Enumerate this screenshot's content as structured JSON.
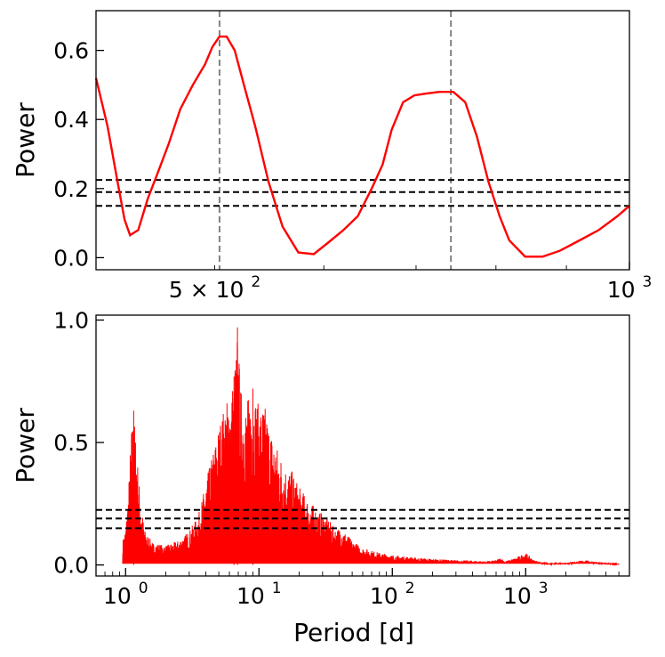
{
  "chart_data": [
    {
      "type": "line",
      "ylabel": "Power",
      "xscale": "log",
      "xlim": [
        410,
        1000
      ],
      "ylim": [
        -0.035,
        0.715
      ],
      "x_tick_labels": [
        {
          "base": "5",
          "times": "×",
          "mant": "10",
          "exp": "2",
          "value": 500
        },
        {
          "mant": "10",
          "exp": "3",
          "value": 1000
        }
      ],
      "y_ticks": [
        0.0,
        0.2,
        0.4,
        0.6
      ],
      "y_tick_labels": [
        "0.0",
        "0.2",
        "0.4",
        "0.6"
      ],
      "series": [
        {
          "color": "#ff0000",
          "x": [
            410,
            418,
            425,
            430,
            434,
            440,
            447,
            455,
            463,
            472,
            482,
            492,
            498,
            504,
            510,
            517,
            525,
            535,
            547,
            560,
            575,
            590,
            605,
            620,
            635,
            650,
            662,
            672,
            685,
            698,
            712,
            728,
            745,
            760,
            775,
            790,
            805,
            818,
            840,
            865,
            890,
            920,
            950,
            980,
            1000
          ],
          "y": [
            0.52,
            0.38,
            0.22,
            0.11,
            0.065,
            0.08,
            0.17,
            0.25,
            0.33,
            0.43,
            0.5,
            0.56,
            0.61,
            0.64,
            0.64,
            0.6,
            0.5,
            0.38,
            0.22,
            0.09,
            0.015,
            0.01,
            0.045,
            0.08,
            0.12,
            0.2,
            0.27,
            0.37,
            0.45,
            0.47,
            0.475,
            0.48,
            0.48,
            0.45,
            0.35,
            0.22,
            0.12,
            0.05,
            0.003,
            0.003,
            0.02,
            0.05,
            0.08,
            0.12,
            0.15
          ]
        }
      ],
      "hlines": [
        {
          "y": 0.15,
          "color": "#000000",
          "style": "dashed"
        },
        {
          "y": 0.19,
          "color": "#000000",
          "style": "dashed"
        },
        {
          "y": 0.225,
          "color": "#000000",
          "style": "dashed"
        }
      ],
      "vlines": [
        {
          "x": 504,
          "color": "#808080",
          "style": "dashed"
        },
        {
          "x": 742,
          "color": "#808080",
          "style": "dashed"
        }
      ],
      "grid": false
    },
    {
      "type": "line",
      "ylabel": "Power",
      "xlabel": "Period [d]",
      "xscale": "log",
      "xlim": [
        0.6,
        6000
      ],
      "ylim": [
        -0.045,
        1.02
      ],
      "x_tick_labels": [
        {
          "mant": "10",
          "exp": "0",
          "value": 1
        },
        {
          "mant": "10",
          "exp": "1",
          "value": 10
        },
        {
          "mant": "10",
          "exp": "2",
          "value": 100
        },
        {
          "mant": "10",
          "exp": "3",
          "value": 1000
        }
      ],
      "y_ticks": [
        0.0,
        0.5,
        1.0
      ],
      "y_tick_labels": [
        "0.0",
        "0.5",
        "1.0"
      ],
      "series": [
        {
          "color": "#ff0000",
          "envelope": [
            [
              0.95,
              0.1
            ],
            [
              1.0,
              0.15
            ],
            [
              1.05,
              0.3
            ],
            [
              1.1,
              0.55
            ],
            [
              1.15,
              0.63
            ],
            [
              1.2,
              0.5
            ],
            [
              1.3,
              0.25
            ],
            [
              1.4,
              0.14
            ],
            [
              1.6,
              0.09
            ],
            [
              2.0,
              0.08
            ],
            [
              2.5,
              0.1
            ],
            [
              3.0,
              0.14
            ],
            [
              3.5,
              0.2
            ],
            [
              4.0,
              0.34
            ],
            [
              4.5,
              0.46
            ],
            [
              5.0,
              0.57
            ],
            [
              5.5,
              0.65
            ],
            [
              6.0,
              0.7
            ],
            [
              6.5,
              0.77
            ],
            [
              6.9,
              0.97
            ],
            [
              7.3,
              0.72
            ],
            [
              8.0,
              0.67
            ],
            [
              9.0,
              0.72
            ],
            [
              10.0,
              0.65
            ],
            [
              11.0,
              0.66
            ],
            [
              12.0,
              0.57
            ],
            [
              14.0,
              0.47
            ],
            [
              16.0,
              0.4
            ],
            [
              18.0,
              0.38
            ],
            [
              20.0,
              0.32
            ],
            [
              24.0,
              0.26
            ],
            [
              28.0,
              0.22
            ],
            [
              32.0,
              0.2
            ],
            [
              37.0,
              0.15
            ],
            [
              42.0,
              0.15
            ],
            [
              50.0,
              0.1
            ],
            [
              60.0,
              0.07
            ],
            [
              80.0,
              0.05
            ],
            [
              100.0,
              0.04
            ],
            [
              150.0,
              0.03
            ],
            [
              200.0,
              0.025
            ],
            [
              300.0,
              0.02
            ],
            [
              400.0,
              0.018
            ],
            [
              500.0,
              0.015
            ],
            [
              600.0,
              0.02
            ],
            [
              650.0,
              0.03
            ],
            [
              700.0,
              0.015
            ],
            [
              850.0,
              0.03
            ],
            [
              1000.0,
              0.05
            ],
            [
              1150.0,
              0.02
            ],
            [
              1500.0,
              0.005
            ],
            [
              2000.0,
              0.01
            ],
            [
              2800.0,
              0.02
            ],
            [
              3500.0,
              0.012
            ],
            [
              5000.0,
              0.002
            ]
          ]
        }
      ],
      "hlines": [
        {
          "y": 0.15,
          "color": "#000000",
          "style": "dashed"
        },
        {
          "y": 0.19,
          "color": "#000000",
          "style": "dashed"
        },
        {
          "y": 0.225,
          "color": "#000000",
          "style": "dashed"
        }
      ],
      "grid": false
    }
  ]
}
